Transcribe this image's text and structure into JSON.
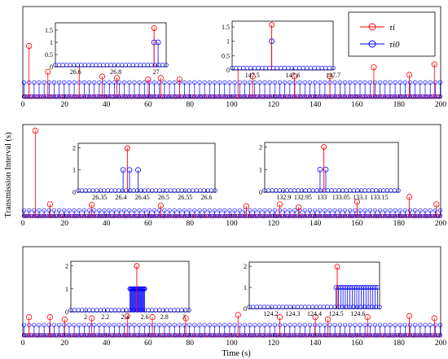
{
  "figure": {
    "ylabel": "Transmission Interval (s)",
    "xlabel": "Time (s)",
    "colors": {
      "tau_i": "#ff0000",
      "tau_i0": "#0000ff",
      "axes": "#000000"
    }
  },
  "legend": {
    "placement": "top-right of first panel",
    "entries": [
      {
        "label": "τi",
        "color": "#ff0000",
        "marker": "circle-stem"
      },
      {
        "label": "τi0",
        "color": "#0000ff",
        "marker": "circle-stem"
      }
    ]
  },
  "chart_data": [
    {
      "type": "stem",
      "xlim": [
        0,
        200
      ],
      "ylim": [
        0,
        6
      ],
      "xticks": [
        0,
        20,
        40,
        60,
        80,
        100,
        120,
        140,
        160,
        180,
        200
      ],
      "series": [
        {
          "name": "τi",
          "baseline": 0.07,
          "peaks": [
            [
              3,
              3.4
            ],
            [
              12,
              1.7
            ],
            [
              27,
              2.5
            ],
            [
              38,
              1.4
            ],
            [
              45,
              1.3
            ],
            [
              60,
              1.2
            ],
            [
              66,
              1.3
            ],
            [
              75,
              1.2
            ],
            [
              103,
              2.2
            ],
            [
              110,
              1.4
            ],
            [
              130,
              1.4
            ],
            [
              147,
              1.4
            ],
            [
              168,
              2.0
            ],
            [
              185,
              1.5
            ],
            [
              197,
              2.2
            ]
          ]
        },
        {
          "name": "τi0",
          "baseline": 0.07,
          "level": 1.0
        }
      ],
      "insets": [
        {
          "xlim": [
            26.5,
            27.05
          ],
          "ylim": [
            0,
            1.8
          ],
          "xticks": [
            26.6,
            26.8,
            27
          ],
          "yticks": [
            0,
            0.5,
            1,
            1.5
          ],
          "series": [
            {
              "name": "τi",
              "baseline": 0.07,
              "peaks": [
                [
                  26.99,
                  1.58
                ]
              ]
            },
            {
              "name": "τi0",
              "baseline": 0.07,
              "level": 1.0,
              "spikes": [
                26.99,
                27.01
              ]
            }
          ]
        },
        {
          "xlim": [
            147.45,
            147.7
          ],
          "ylim": [
            0,
            1.7
          ],
          "xticks": [
            147.5,
            147.6,
            147.7
          ],
          "yticks": [
            0,
            0.5,
            1,
            1.5
          ],
          "series": [
            {
              "name": "τi",
              "baseline": 0.07,
              "peaks": [
                [
                  147.548,
                  1.57
                ]
              ]
            },
            {
              "name": "τi0",
              "baseline": 0.07,
              "level": 1.0,
              "spikes": [
                147.548
              ]
            }
          ]
        }
      ]
    },
    {
      "type": "stem",
      "xlim": [
        0,
        200
      ],
      "ylim": [
        0,
        15
      ],
      "xticks": [
        0,
        20,
        40,
        60,
        80,
        100,
        120,
        140,
        160,
        180,
        200
      ],
      "series": [
        {
          "name": "τi",
          "baseline": 0.08,
          "peaks": [
            [
              6,
              14.0
            ],
            [
              13,
              2.0
            ],
            [
              33,
              1.9
            ],
            [
              66,
              1.8
            ],
            [
              107,
              1.7
            ],
            [
              123,
              2.0
            ],
            [
              132,
              1.5
            ],
            [
              160,
              2.4
            ],
            [
              185,
              3.2
            ],
            [
              198,
              2.0
            ]
          ]
        },
        {
          "name": "τi0",
          "baseline": 0.08,
          "level": 1.0
        }
      ],
      "insets": [
        {
          "xlim": [
            26.3,
            26.62
          ],
          "ylim": [
            0,
            2.2
          ],
          "xticks": [
            26.35,
            26.4,
            26.45,
            26.5,
            26.55,
            26.6
          ],
          "yticks": [
            0,
            1,
            2
          ],
          "series": [
            {
              "name": "τi",
              "baseline": 0.07,
              "peaks": [
                [
                  26.415,
                  1.98
                ]
              ]
            },
            {
              "name": "τi0",
              "baseline": 0.07,
              "level": 1.0,
              "spikes": [
                26.405,
                26.42,
                26.44
              ]
            }
          ]
        },
        {
          "xlim": [
            132.85,
            133.2
          ],
          "ylim": [
            0,
            2.2
          ],
          "xticks": [
            132.9,
            132.95,
            133,
            133.05,
            133.1,
            133.15
          ],
          "yticks": [
            0,
            1,
            2
          ],
          "series": [
            {
              "name": "τi",
              "baseline": 0.07,
              "peaks": [
                [
                  133.005,
                  2.0
                ]
              ]
            },
            {
              "name": "τi0",
              "baseline": 0.07,
              "level": 1.0,
              "spikes": [
                132.995,
                133.01
              ]
            }
          ]
        }
      ]
    },
    {
      "type": "stem",
      "xlim": [
        0,
        200
      ],
      "ylim": [
        0,
        8
      ],
      "xticks": [
        0,
        20,
        40,
        60,
        80,
        100,
        120,
        140,
        160,
        180,
        200
      ],
      "series": [
        {
          "name": "τi",
          "baseline": 0.08,
          "peaks": [
            [
              3,
              1.7
            ],
            [
              13,
              1.7
            ],
            [
              20,
              1.5
            ],
            [
              33,
              1.6
            ],
            [
              50,
              1.8
            ],
            [
              62,
              1.7
            ],
            [
              78,
              1.6
            ],
            [
              103,
              1.9
            ],
            [
              123,
              1.7
            ],
            [
              140,
              1.7
            ],
            [
              146,
              1.5
            ],
            [
              165,
              1.7
            ],
            [
              185,
              1.8
            ],
            [
              197,
              1.6
            ]
          ]
        },
        {
          "name": "τi0",
          "baseline": 0.08,
          "level": 1.0
        }
      ],
      "insets": [
        {
          "xlim": [
            1.85,
            3.05
          ],
          "ylim": [
            0,
            2.2
          ],
          "xticks": [
            2,
            2.2,
            2.4,
            2.6,
            2.8,
            3
          ],
          "yticks": [
            0,
            1,
            2
          ],
          "series": [
            {
              "name": "τi",
              "baseline": 0.07,
              "peaks": [
                [
                  2.52,
                  2.0
                ]
              ]
            },
            {
              "name": "τi0",
              "baseline": 0.07,
              "level": 1.0,
              "band": [
                2.45,
                2.6
              ]
            }
          ]
        },
        {
          "xlim": [
            124.1,
            124.7
          ],
          "ylim": [
            0,
            2.2
          ],
          "xticks": [
            124.2,
            124.3,
            124.4,
            124.5,
            124.6
          ],
          "yticks": [
            0,
            1,
            2
          ],
          "series": [
            {
              "name": "τi",
              "baseline": 0.07,
              "peaks": [
                [
                  124.505,
                  1.98
                ]
              ]
            },
            {
              "name": "τi0",
              "baseline": 0.07,
              "level": 1.0,
              "band": [
                124.5,
                124.69
              ]
            }
          ]
        }
      ]
    }
  ]
}
